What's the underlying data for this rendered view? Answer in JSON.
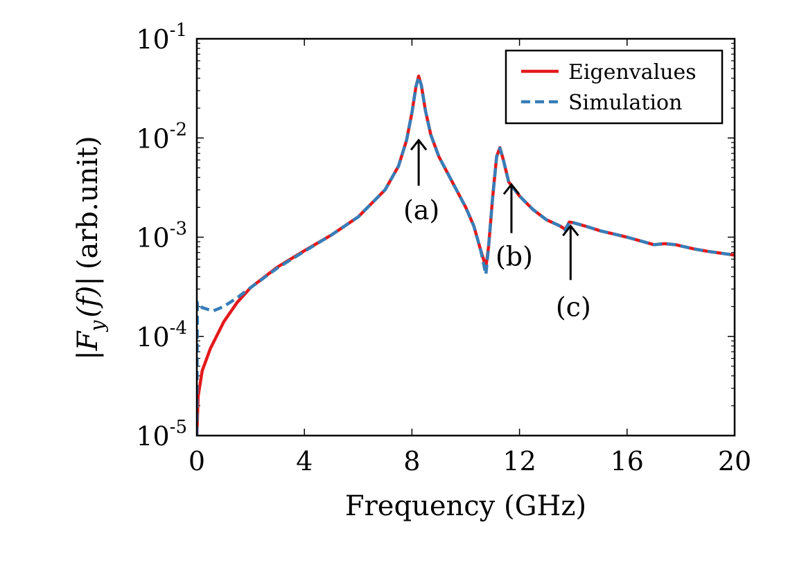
{
  "chart_data": {
    "type": "line",
    "xlabel": "Frequency (GHz)",
    "ylabel": "|F_y(f)| (arb.unit)",
    "ylabel_parts": {
      "open": "|",
      "F": "F",
      "sub": "y",
      "arg": "(f)",
      "close": "|",
      "unit": "(arb.unit)"
    },
    "xlim": [
      0,
      20
    ],
    "ylim": [
      1e-05,
      0.1
    ],
    "yscale": "log",
    "x_ticks": [
      0,
      4,
      8,
      12,
      16,
      20
    ],
    "x_tick_labels": [
      "0",
      "4",
      "8",
      "12",
      "16",
      "20"
    ],
    "y_ticks": [
      1e-05,
      0.0001,
      0.001,
      0.01,
      0.1
    ],
    "y_tick_labels": [
      {
        "base": "10",
        "exp": "-5"
      },
      {
        "base": "10",
        "exp": "-4"
      },
      {
        "base": "10",
        "exp": "-3"
      },
      {
        "base": "10",
        "exp": "-2"
      },
      {
        "base": "10",
        "exp": "-1"
      }
    ],
    "legend": {
      "position": "top-right"
    },
    "series": [
      {
        "name": "Eigenvalues",
        "color": "#e41a1c",
        "style": "solid",
        "points": [
          [
            0.0,
            1e-05
          ],
          [
            0.05,
            2.5e-05
          ],
          [
            0.2,
            4.5e-05
          ],
          [
            0.5,
            7.5e-05
          ],
          [
            1.0,
            0.00014
          ],
          [
            1.5,
            0.00022
          ],
          [
            2.0,
            0.00031
          ],
          [
            3.0,
            0.0005
          ],
          [
            4.0,
            0.00073
          ],
          [
            5.0,
            0.00105
          ],
          [
            6.0,
            0.0016
          ],
          [
            7.0,
            0.003
          ],
          [
            7.5,
            0.0052
          ],
          [
            7.8,
            0.0095
          ],
          [
            8.0,
            0.018
          ],
          [
            8.15,
            0.033
          ],
          [
            8.25,
            0.042
          ],
          [
            8.35,
            0.034
          ],
          [
            8.5,
            0.019
          ],
          [
            8.7,
            0.0108
          ],
          [
            9.0,
            0.0065
          ],
          [
            9.5,
            0.0036
          ],
          [
            10.0,
            0.002
          ],
          [
            10.3,
            0.0013
          ],
          [
            10.55,
            0.00075
          ],
          [
            10.75,
            0.0005
          ],
          [
            10.85,
            0.0008
          ],
          [
            11.0,
            0.0025
          ],
          [
            11.15,
            0.0065
          ],
          [
            11.27,
            0.008
          ],
          [
            11.4,
            0.006
          ],
          [
            11.6,
            0.0036
          ],
          [
            12.0,
            0.0026
          ],
          [
            12.5,
            0.0019
          ],
          [
            13.0,
            0.0015
          ],
          [
            13.5,
            0.0013
          ],
          [
            13.7,
            0.0012
          ],
          [
            13.85,
            0.00142
          ],
          [
            14.0,
            0.0014
          ],
          [
            14.5,
            0.00128
          ],
          [
            15.0,
            0.00116
          ],
          [
            16.0,
            0.001
          ],
          [
            17.0,
            0.00084
          ],
          [
            17.4,
            0.00086
          ],
          [
            17.8,
            0.00084
          ],
          [
            18.5,
            0.00076
          ],
          [
            19.0,
            0.00072
          ],
          [
            20.0,
            0.00066
          ]
        ]
      },
      {
        "name": "Simulation",
        "color": "#377eb8",
        "style": "dashed",
        "points": [
          [
            0.0,
            1e-05
          ],
          [
            0.02,
            0.00022
          ],
          [
            0.2,
            0.000195
          ],
          [
            0.6,
            0.00018
          ],
          [
            1.0,
            0.0002
          ],
          [
            1.5,
            0.000245
          ],
          [
            2.0,
            0.00031
          ],
          [
            3.0,
            0.00049
          ],
          [
            4.0,
            0.00072
          ],
          [
            5.0,
            0.00105
          ],
          [
            6.0,
            0.0016
          ],
          [
            7.0,
            0.003
          ],
          [
            7.5,
            0.0052
          ],
          [
            7.8,
            0.0095
          ],
          [
            8.0,
            0.018
          ],
          [
            8.15,
            0.033
          ],
          [
            8.25,
            0.041
          ],
          [
            8.35,
            0.034
          ],
          [
            8.5,
            0.019
          ],
          [
            8.7,
            0.0108
          ],
          [
            9.0,
            0.0065
          ],
          [
            9.5,
            0.0036
          ],
          [
            10.0,
            0.002
          ],
          [
            10.3,
            0.0013
          ],
          [
            10.55,
            0.00075
          ],
          [
            10.75,
            0.00042
          ],
          [
            10.85,
            0.0008
          ],
          [
            11.0,
            0.0025
          ],
          [
            11.15,
            0.0065
          ],
          [
            11.27,
            0.0079
          ],
          [
            11.4,
            0.006
          ],
          [
            11.6,
            0.0036
          ],
          [
            12.0,
            0.0026
          ],
          [
            12.5,
            0.0019
          ],
          [
            13.0,
            0.0015
          ],
          [
            13.5,
            0.0013
          ],
          [
            13.7,
            0.00118
          ],
          [
            13.85,
            0.00142
          ],
          [
            14.0,
            0.0014
          ],
          [
            14.5,
            0.00128
          ],
          [
            15.0,
            0.00116
          ],
          [
            16.0,
            0.001
          ],
          [
            17.0,
            0.00084
          ],
          [
            17.4,
            0.00086
          ],
          [
            17.8,
            0.00084
          ],
          [
            18.5,
            0.00076
          ],
          [
            19.0,
            0.00072
          ],
          [
            20.0,
            0.00066
          ]
        ]
      }
    ],
    "annotations": [
      {
        "label": "(a)",
        "x": 8.25,
        "arrow_tip_y": 0.0095,
        "arrow_tail_y": 0.0033,
        "text_y": 0.0019
      },
      {
        "label": "(b)",
        "x": 11.7,
        "arrow_tip_y": 0.0034,
        "arrow_tail_y": 0.0011,
        "text_y": 0.00065
      },
      {
        "label": "(c)",
        "x": 13.9,
        "arrow_tip_y": 0.0013,
        "arrow_tail_y": 0.00037,
        "text_y": 0.0002
      }
    ]
  }
}
